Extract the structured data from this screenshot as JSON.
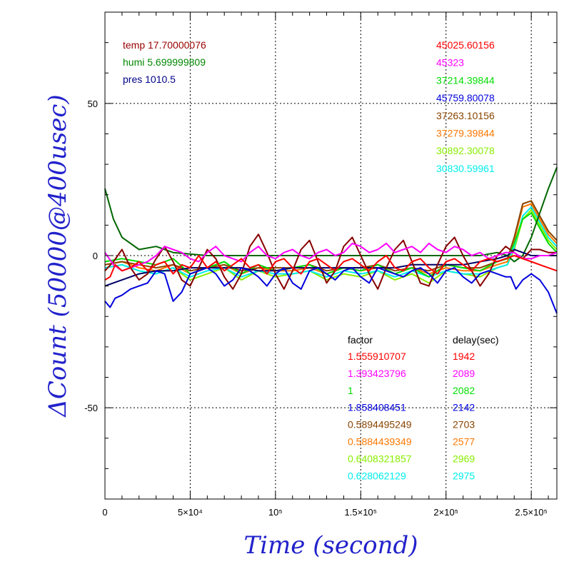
{
  "chart_data": {
    "type": "line",
    "xlabel": "Time (second)",
    "ylabel": "ΔCount (50000@400usec)",
    "xlim": [
      0,
      265000
    ],
    "ylim": [
      -80,
      80
    ],
    "grid": true,
    "x_ticks": [
      {
        "value": 0,
        "label": "0"
      },
      {
        "value": 50000,
        "label": "5×10⁴"
      },
      {
        "value": 100000,
        "label": "10⁵"
      },
      {
        "value": 150000,
        "label": "1.5×10⁵"
      },
      {
        "value": 200000,
        "label": "2×10⁵"
      },
      {
        "value": 250000,
        "label": "2.5×10⁵"
      }
    ],
    "y_ticks": [
      {
        "value": 50,
        "label": "50"
      },
      {
        "value": 0,
        "label": "0"
      },
      {
        "value": -50,
        "label": "-50"
      }
    ],
    "env_legend": [
      {
        "text": "temp 17.70000076",
        "color": "#990000"
      },
      {
        "text": "humi 5.699999809",
        "color": "#008800"
      },
      {
        "text": "pres 1010.5",
        "color": "#000088"
      }
    ],
    "rate_legend": [
      {
        "text": "45025.60156",
        "color": "#ff0000"
      },
      {
        "text": "45323",
        "color": "#ff00ff"
      },
      {
        "text": "37214.39844",
        "color": "#00dd00"
      },
      {
        "text": "45759.80078",
        "color": "#0000dd"
      },
      {
        "text": "37263.10156",
        "color": "#884400"
      },
      {
        "text": "37279.39844",
        "color": "#ff7700"
      },
      {
        "text": "30892.30078",
        "color": "#88ee00"
      },
      {
        "text": "30830.59961",
        "color": "#00eeee"
      }
    ],
    "factor_header": "factor",
    "delay_header": "delay(sec)",
    "factor_table": [
      {
        "factor": "1.555910707",
        "delay": "1942",
        "color": "#ff0000"
      },
      {
        "factor": "1.393423796",
        "delay": "2089",
        "color": "#ff00ff"
      },
      {
        "factor": "1",
        "delay": "2082",
        "color": "#00dd00"
      },
      {
        "factor": "1.858408451",
        "delay": "2142",
        "color": "#0000dd"
      },
      {
        "factor": "0.5894495249",
        "delay": "2703",
        "color": "#884400"
      },
      {
        "factor": "0.5884439349",
        "delay": "2577",
        "color": "#ff7700"
      },
      {
        "factor": "0.6408321857",
        "delay": "2969",
        "color": "#88ee00"
      },
      {
        "factor": "0.628062129",
        "delay": "2975",
        "color": "#00eeee"
      }
    ],
    "series": [
      {
        "color": "#88ee00",
        "x": [
          0,
          10000,
          20000,
          30000,
          40000,
          50000,
          60000,
          70000,
          80000,
          90000,
          100000,
          110000,
          120000,
          130000,
          140000,
          150000,
          160000,
          170000,
          180000,
          190000,
          200000,
          210000,
          220000,
          230000,
          236000,
          240000,
          245000,
          250000,
          255000,
          260000,
          265000
        ],
        "y": [
          -4,
          -3,
          -5,
          -6,
          -4,
          -8,
          -6,
          -4,
          -8,
          -5,
          -7,
          -6,
          -5,
          -8,
          -6,
          -7,
          -5,
          -8,
          -6,
          -9,
          -5,
          -6,
          -7,
          -4,
          -3,
          2,
          12,
          15,
          10,
          5,
          2
        ]
      },
      {
        "color": "#00eeee",
        "x": [
          0,
          10000,
          20000,
          30000,
          40000,
          50000,
          60000,
          70000,
          80000,
          90000,
          100000,
          110000,
          120000,
          130000,
          140000,
          150000,
          160000,
          170000,
          180000,
          190000,
          200000,
          210000,
          220000,
          230000,
          236000,
          240000,
          245000,
          250000,
          255000,
          260000,
          265000
        ],
        "y": [
          -4,
          -3,
          -5,
          -6,
          -4,
          -7,
          -5,
          -4,
          -7,
          -5,
          -6,
          -6,
          -5,
          -7,
          -5,
          -6,
          -5,
          -7,
          -5,
          -7,
          -5,
          -6,
          -6,
          -4,
          -3,
          3,
          13,
          16,
          11,
          6,
          3
        ]
      },
      {
        "color": "#ff7700",
        "x": [
          0,
          10000,
          20000,
          30000,
          40000,
          50000,
          60000,
          70000,
          80000,
          90000,
          100000,
          110000,
          120000,
          130000,
          140000,
          150000,
          160000,
          170000,
          180000,
          190000,
          200000,
          210000,
          220000,
          230000,
          236000,
          240000,
          245000,
          250000,
          255000,
          260000,
          265000
        ],
        "y": [
          -3,
          -2,
          -4,
          -5,
          -3,
          -6,
          -4,
          -3,
          -6,
          -4,
          -5,
          -5,
          -4,
          -6,
          -4,
          -5,
          -4,
          -6,
          -4,
          -6,
          -4,
          -5,
          -5,
          -3,
          -2,
          5,
          16,
          17,
          12,
          7,
          4
        ]
      },
      {
        "color": "#884400",
        "x": [
          0,
          10000,
          20000,
          30000,
          40000,
          50000,
          60000,
          70000,
          80000,
          90000,
          100000,
          110000,
          120000,
          130000,
          140000,
          150000,
          160000,
          170000,
          180000,
          190000,
          200000,
          210000,
          220000,
          230000,
          236000,
          240000,
          245000,
          250000,
          255000,
          260000,
          265000
        ],
        "y": [
          -3,
          -2,
          -3,
          -4,
          -3,
          -5,
          -4,
          -3,
          -5,
          -4,
          -4,
          -4,
          -3,
          -5,
          -4,
          -4,
          -3,
          -5,
          -4,
          -5,
          -3,
          -4,
          -4,
          -2,
          -1,
          6,
          17,
          18,
          13,
          8,
          5
        ]
      },
      {
        "color": "#00dd00",
        "x": [
          0,
          10000,
          20000,
          30000,
          40000,
          50000,
          60000,
          70000,
          80000,
          90000,
          100000,
          110000,
          120000,
          130000,
          140000,
          150000,
          160000,
          170000,
          180000,
          190000,
          200000,
          210000,
          220000,
          230000,
          236000,
          240000,
          245000,
          250000,
          255000,
          260000,
          265000
        ],
        "y": [
          -2,
          -1,
          -2,
          -3,
          -1,
          -6,
          -4,
          -2,
          -6,
          -3,
          -5,
          -4,
          -3,
          -6,
          -4,
          -5,
          -3,
          -6,
          -4,
          -7,
          -3,
          -4,
          -5,
          -2,
          -1,
          4,
          12,
          14,
          9,
          4,
          1
        ]
      },
      {
        "color": "#006600",
        "x": [
          0,
          5000,
          10000,
          20000,
          30000,
          40000,
          60000,
          80000,
          100000,
          120000,
          140000,
          160000,
          180000,
          200000,
          220000,
          230000,
          236000,
          240000,
          245000,
          250000,
          255000,
          260000,
          265000
        ],
        "y": [
          22,
          12,
          6,
          2,
          3,
          1,
          0,
          0,
          0,
          0,
          0,
          0,
          0,
          0,
          0,
          1,
          0,
          -2,
          0,
          6,
          14,
          22,
          29
        ]
      },
      {
        "color": "#000066",
        "x": [
          0,
          10000,
          20000,
          30000,
          40000,
          50000,
          60000,
          70000,
          80000,
          90000,
          100000,
          110000,
          120000,
          130000,
          140000,
          150000,
          160000,
          170000,
          180000,
          190000,
          200000,
          210000,
          220000,
          230000,
          236000,
          240000,
          245000,
          250000,
          255000,
          260000,
          265000
        ],
        "y": [
          -10,
          -8,
          -6,
          -5,
          -5,
          -4,
          -4,
          -4,
          -4,
          -5,
          -5,
          -4,
          -4,
          -4,
          -4,
          -4,
          -4,
          -4,
          -3,
          -3,
          -3,
          -3,
          -2,
          -1,
          0,
          2,
          1,
          0,
          0,
          0,
          0
        ]
      },
      {
        "color": "#880000",
        "x": [
          0,
          5000,
          10000,
          15000,
          20000,
          25000,
          30000,
          35000,
          40000,
          45000,
          50000,
          55000,
          60000,
          65000,
          70000,
          75000,
          80000,
          85000,
          90000,
          95000,
          100000,
          105000,
          110000,
          115000,
          120000,
          125000,
          130000,
          135000,
          140000,
          145000,
          150000,
          155000,
          160000,
          165000,
          170000,
          175000,
          180000,
          185000,
          190000,
          195000,
          200000,
          205000,
          210000,
          215000,
          220000,
          225000,
          230000,
          235000,
          240000,
          245000,
          250000,
          255000,
          260000,
          265000
        ],
        "y": [
          -5,
          -2,
          2,
          -4,
          -8,
          -6,
          -1,
          3,
          -2,
          -8,
          -10,
          -4,
          2,
          -1,
          -7,
          -11,
          -6,
          3,
          7,
          1,
          -6,
          -11,
          -5,
          2,
          5,
          -2,
          -9,
          -5,
          3,
          6,
          0,
          -6,
          -11,
          -4,
          2,
          5,
          -2,
          -9,
          -10,
          -3,
          3,
          6,
          0,
          -5,
          -10,
          -6,
          0,
          3,
          1,
          -1,
          2,
          2,
          1,
          1
        ]
      },
      {
        "color": "#ff00ff",
        "x": [
          0,
          5000,
          10000,
          15000,
          20000,
          25000,
          30000,
          35000,
          40000,
          45000,
          50000,
          55000,
          60000,
          65000,
          70000,
          75000,
          80000,
          85000,
          90000,
          95000,
          100000,
          105000,
          110000,
          115000,
          120000,
          125000,
          130000,
          135000,
          140000,
          145000,
          150000,
          155000,
          160000,
          165000,
          170000,
          175000,
          180000,
          185000,
          190000,
          195000,
          200000,
          205000,
          210000,
          215000,
          220000,
          225000,
          230000,
          235000,
          240000,
          245000,
          250000,
          255000,
          260000,
          265000
        ],
        "y": [
          1,
          -3,
          -5,
          -4,
          -3,
          -2,
          0,
          3,
          2,
          1,
          -1,
          -2,
          1,
          3,
          0,
          -1,
          -2,
          1,
          3,
          0,
          -1,
          1,
          2,
          0,
          -1,
          1,
          2,
          0,
          1,
          4,
          3,
          1,
          2,
          4,
          1,
          2,
          3,
          1,
          4,
          2,
          1,
          3,
          2,
          0,
          1,
          -1,
          0,
          1,
          1,
          -1,
          -1,
          0,
          0,
          1
        ]
      },
      {
        "color": "#0000dd",
        "x": [
          0,
          3000,
          6000,
          10000,
          15000,
          20000,
          25000,
          30000,
          35000,
          40000,
          45000,
          50000,
          55000,
          60000,
          65000,
          70000,
          75000,
          80000,
          85000,
          90000,
          95000,
          100000,
          105000,
          110000,
          115000,
          120000,
          125000,
          130000,
          135000,
          140000,
          145000,
          150000,
          155000,
          160000,
          165000,
          170000,
          175000,
          180000,
          185000,
          190000,
          195000,
          200000,
          205000,
          210000,
          215000,
          220000,
          225000,
          230000,
          235000,
          238000,
          241000,
          245000,
          250000,
          255000,
          260000,
          265000
        ],
        "y": [
          -15,
          -17,
          -14,
          -13,
          -11,
          -10,
          -9,
          -5,
          -6,
          -15,
          -12,
          -6,
          -5,
          -4,
          -6,
          -10,
          -8,
          -4,
          -5,
          -7,
          -10,
          -6,
          -4,
          -9,
          -11,
          -5,
          -4,
          -6,
          -8,
          -5,
          -4,
          -7,
          -9,
          -4,
          -5,
          -6,
          -7,
          -5,
          -4,
          -6,
          -9,
          -5,
          -4,
          -7,
          -9,
          -6,
          -5,
          -6,
          -7,
          -7,
          -11,
          -8,
          -6,
          -8,
          -12,
          -19
        ]
      },
      {
        "color": "#ff0000",
        "x": [
          0,
          3000,
          6000,
          10000,
          15000,
          20000,
          25000,
          30000,
          35000,
          40000,
          45000,
          50000,
          55000,
          60000,
          65000,
          70000,
          75000,
          80000,
          85000,
          90000,
          95000,
          100000,
          105000,
          110000,
          115000,
          120000,
          125000,
          130000,
          135000,
          140000,
          145000,
          150000,
          155000,
          160000,
          165000,
          170000,
          175000,
          180000,
          185000,
          190000,
          195000,
          200000,
          205000,
          210000,
          215000,
          220000,
          225000,
          230000,
          235000,
          240000,
          245000,
          250000,
          255000,
          260000,
          265000
        ],
        "y": [
          -8,
          -7,
          -3,
          -5,
          -4,
          -2,
          -5,
          -3,
          -2,
          -6,
          -3,
          -4,
          0,
          -4,
          -2,
          -5,
          -3,
          -1,
          -4,
          -3,
          -6,
          -2,
          -1,
          -4,
          -6,
          -2,
          -1,
          -3,
          -5,
          -2,
          -1,
          -3,
          -5,
          -2,
          0,
          -4,
          -5,
          -2,
          -1,
          -4,
          -6,
          -2,
          -1,
          -3,
          -5,
          -2,
          -1,
          -2,
          -1,
          0,
          -1,
          -2,
          -3,
          -4,
          -5
        ]
      }
    ]
  }
}
